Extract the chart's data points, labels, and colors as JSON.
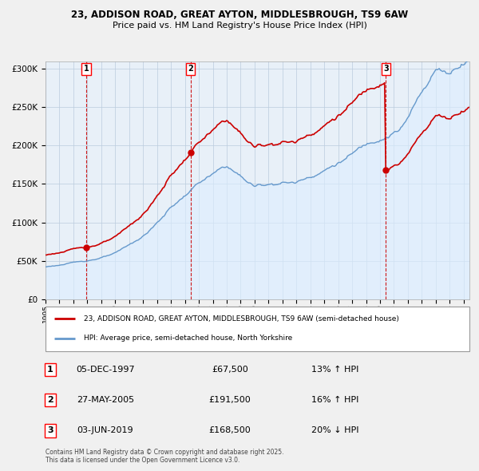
{
  "title1": "23, ADDISON ROAD, GREAT AYTON, MIDDLESBROUGH, TS9 6AW",
  "title2": "Price paid vs. HM Land Registry's House Price Index (HPI)",
  "sale_dates_str": [
    "1997-12-05",
    "2005-05-27",
    "2019-06-03"
  ],
  "sale_prices": [
    67500,
    191500,
    168500
  ],
  "sale_labels": [
    "1",
    "2",
    "3"
  ],
  "legend_line1": "23, ADDISON ROAD, GREAT AYTON, MIDDLESBROUGH, TS9 6AW (semi-detached house)",
  "legend_line2": "HPI: Average price, semi-detached house, North Yorkshire",
  "footer": "Contains HM Land Registry data © Crown copyright and database right 2025.\nThis data is licensed under the Open Government Licence v3.0.",
  "sale_color": "#cc0000",
  "hpi_color": "#6699cc",
  "hpi_fill_color": "#ddeeff",
  "background_color": "#f0f0f0",
  "plot_bg_color": "#e8f0f8",
  "ylim": [
    0,
    310000
  ],
  "yticks": [
    0,
    50000,
    100000,
    150000,
    200000,
    250000,
    300000
  ],
  "ytick_labels": [
    "£0",
    "£50K",
    "£100K",
    "£150K",
    "£200K",
    "£250K",
    "£300K"
  ],
  "sale_info": [
    [
      "1",
      "05-DEC-1997",
      "£67,500",
      "13% ↑ HPI"
    ],
    [
      "2",
      "27-MAY-2005",
      "£191,500",
      "16% ↑ HPI"
    ],
    [
      "3",
      "03-JUN-2019",
      "£168,500",
      "20% ↓ HPI"
    ]
  ]
}
